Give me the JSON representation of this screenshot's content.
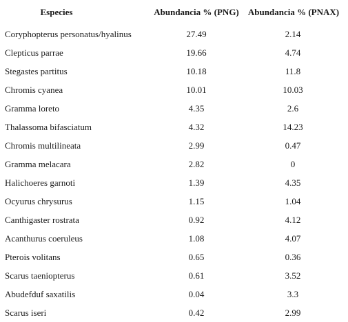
{
  "table": {
    "headers": {
      "species": "Especies",
      "png": "Abundancia % (PNG)",
      "pnax": "Abundancia % (PNAX)"
    },
    "rows": [
      {
        "species": "Coryphopterus personatus/hyalinus",
        "png": "27.49",
        "pnax": "2.14"
      },
      {
        "species": "Clepticus parrae",
        "png": "19.66",
        "pnax": "4.74"
      },
      {
        "species": "Stegastes partitus",
        "png": "10.18",
        "pnax": "11.8"
      },
      {
        "species": "Chromis cyanea",
        "png": "10.01",
        "pnax": "10.03"
      },
      {
        "species": "Gramma loreto",
        "png": "4.35",
        "pnax": "2.6"
      },
      {
        "species": "Thalassoma bifasciatum",
        "png": "4.32",
        "pnax": "14.23"
      },
      {
        "species": "Chromis multilineata",
        "png": "2.99",
        "pnax": "0.47"
      },
      {
        "species": "Gramma melacara",
        "png": "2.82",
        "pnax": "0"
      },
      {
        "species": "Halichoeres garnoti",
        "png": "1.39",
        "pnax": "4.35"
      },
      {
        "species": "Ocyurus chrysurus",
        "png": "1.15",
        "pnax": "1.04"
      },
      {
        "species": "Canthigaster rostrata",
        "png": "0.92",
        "pnax": "4.12"
      },
      {
        "species": "Acanthurus coeruleus",
        "png": "1.08",
        "pnax": "4.07"
      },
      {
        "species": "Pterois volitans",
        "png": "0.65",
        "pnax": "0.36"
      },
      {
        "species": "Scarus taeniopterus",
        "png": "0.61",
        "pnax": "3.52"
      },
      {
        "species": "Abudefduf saxatilis",
        "png": "0.04",
        "pnax": "3.3"
      },
      {
        "species": "Scarus iseri",
        "png": "0.42",
        "pnax": "2.99"
      }
    ]
  }
}
